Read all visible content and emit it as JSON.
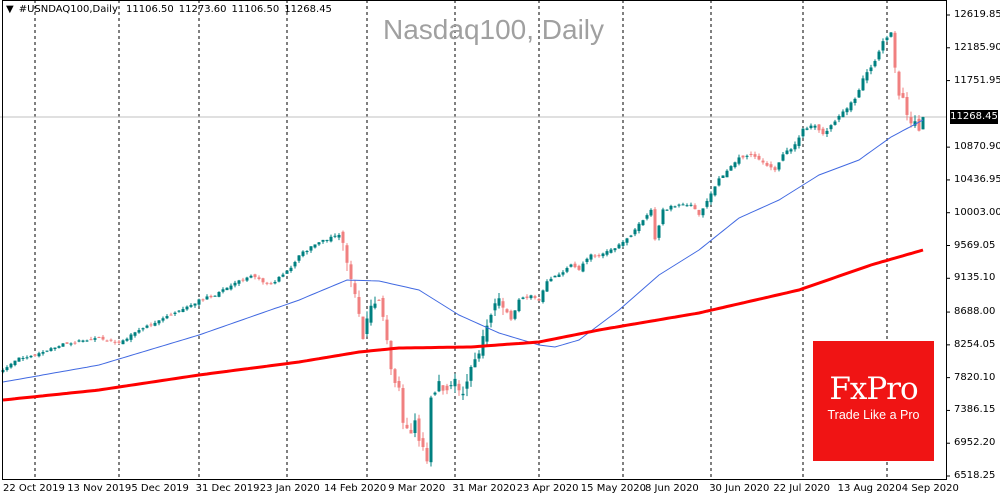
{
  "header": {
    "symbol": "#USNDAQ100,Daily",
    "open": "11106.50",
    "high": "11273.60",
    "low": "11106.50",
    "close": "11268.45"
  },
  "logo": {
    "brand": "FxPro",
    "tagline": "Trade Like a Pro"
  },
  "colors": {
    "bull": "#008080",
    "bear": "#f08080",
    "ma_fast": "#4169e1",
    "ma_slow": "#ff0000",
    "current_line": "#c0c0c0",
    "logo_bg": "#f01414"
  },
  "chart_data": {
    "type": "candlestick",
    "title": "Nasdaq100, Daily",
    "current_price": "11268.45",
    "ylim": [
      6518.25,
      12619.85
    ],
    "y_ticks": [
      "12619.85",
      "12185.90",
      "11751.95",
      "10870.90",
      "10436.95",
      "10003.00",
      "9569.05",
      "9135.10",
      "8688.00",
      "8254.05",
      "7820.10",
      "7386.15",
      "6952.20",
      "6518.25"
    ],
    "x_ticks": [
      "22 Oct 2019",
      "13 Nov 2019",
      "5 Dec 2019",
      "31 Dec 2019",
      "23 Jan 2020",
      "14 Feb 2020",
      "9 Mar 2020",
      "31 Mar 2020",
      "23 Apr 2020",
      "15 May 2020",
      "8 Jun 2020",
      "30 Jun 2020",
      "22 Jul 2020",
      "13 Aug 2020",
      "4 Sep 2020"
    ],
    "grid": "vertical dashed",
    "last_candle": {
      "open": 11106.5,
      "high": 11273.6,
      "low": 11106.5,
      "close": 11268.45
    },
    "close_anchors": [
      [
        0,
        7921
      ],
      [
        4,
        8080
      ],
      [
        8,
        8120
      ],
      [
        14,
        8250
      ],
      [
        24,
        8350
      ],
      [
        29,
        8280
      ],
      [
        34,
        8450
      ],
      [
        39,
        8580
      ],
      [
        47,
        8780
      ],
      [
        49,
        8850
      ],
      [
        53,
        8910
      ],
      [
        59,
        9110
      ],
      [
        62,
        9160
      ],
      [
        67,
        9050
      ],
      [
        72,
        9270
      ],
      [
        74,
        9440
      ],
      [
        79,
        9620
      ],
      [
        84,
        9720
      ],
      [
        86,
        9400
      ],
      [
        87,
        9110
      ],
      [
        89,
        8720
      ],
      [
        90,
        8380
      ],
      [
        92,
        8820
      ],
      [
        94,
        8870
      ],
      [
        95,
        8580
      ],
      [
        96,
        8320
      ],
      [
        97,
        7920
      ],
      [
        99,
        7660
      ],
      [
        100,
        7260
      ],
      [
        102,
        7060
      ],
      [
        103,
        7260
      ],
      [
        104,
        6990
      ],
      [
        106,
        6730
      ],
      [
        107,
        7520
      ],
      [
        109,
        7790
      ],
      [
        110,
        7660
      ],
      [
        113,
        7790
      ],
      [
        115,
        7590
      ],
      [
        117,
        7990
      ],
      [
        119,
        8190
      ],
      [
        120,
        8320
      ],
      [
        122,
        8650
      ],
      [
        124,
        8850
      ],
      [
        127,
        8580
      ],
      [
        129,
        8850
      ],
      [
        132,
        8910
      ],
      [
        134,
        8850
      ],
      [
        136,
        9110
      ],
      [
        139,
        9180
      ],
      [
        142,
        9310
      ],
      [
        144,
        9250
      ],
      [
        147,
        9440
      ],
      [
        149,
        9440
      ],
      [
        152,
        9510
      ],
      [
        154,
        9580
      ],
      [
        157,
        9710
      ],
      [
        159,
        9840
      ],
      [
        162,
        10040
      ],
      [
        163,
        9640
      ],
      [
        165,
        10040
      ],
      [
        168,
        10100
      ],
      [
        172,
        10100
      ],
      [
        174,
        9970
      ],
      [
        177,
        10240
      ],
      [
        179,
        10440
      ],
      [
        182,
        10630
      ],
      [
        184,
        10730
      ],
      [
        187,
        10770
      ],
      [
        189,
        10700
      ],
      [
        193,
        10570
      ],
      [
        195,
        10770
      ],
      [
        198,
        10900
      ],
      [
        200,
        11100
      ],
      [
        203,
        11160
      ],
      [
        205,
        11030
      ],
      [
        208,
        11230
      ],
      [
        210,
        11360
      ],
      [
        213,
        11490
      ],
      [
        215,
        11760
      ],
      [
        218,
        12025
      ],
      [
        220,
        12260
      ],
      [
        222,
        12420
      ],
      [
        223,
        11890
      ],
      [
        224,
        11560
      ],
      [
        225,
        11490
      ],
      [
        227,
        11160
      ],
      [
        228,
        11230
      ],
      [
        229,
        11106.5
      ],
      [
        230,
        11268.45
      ]
    ],
    "series": [
      {
        "name": "MA fast",
        "color": "#4169e1",
        "points": [
          [
            0,
            7762
          ],
          [
            24,
            7987
          ],
          [
            49,
            8384
          ],
          [
            74,
            8847
          ],
          [
            86,
            9112
          ],
          [
            94,
            9099
          ],
          [
            104,
            8980
          ],
          [
            114,
            8649
          ],
          [
            124,
            8411
          ],
          [
            134,
            8252
          ],
          [
            138,
            8226
          ],
          [
            144,
            8318
          ],
          [
            154,
            8715
          ],
          [
            164,
            9178
          ],
          [
            174,
            9509
          ],
          [
            184,
            9933
          ],
          [
            194,
            10171
          ],
          [
            204,
            10502
          ],
          [
            214,
            10701
          ],
          [
            222,
            11005
          ],
          [
            230,
            11230
          ]
        ]
      },
      {
        "name": "MA slow",
        "color": "#ff0000",
        "points": [
          [
            0,
            7524
          ],
          [
            24,
            7656
          ],
          [
            49,
            7855
          ],
          [
            74,
            8027
          ],
          [
            89,
            8159
          ],
          [
            99,
            8212
          ],
          [
            117,
            8226
          ],
          [
            134,
            8292
          ],
          [
            149,
            8451
          ],
          [
            174,
            8676
          ],
          [
            199,
            8980
          ],
          [
            217,
            9311
          ],
          [
            230,
            9509
          ]
        ]
      }
    ]
  }
}
